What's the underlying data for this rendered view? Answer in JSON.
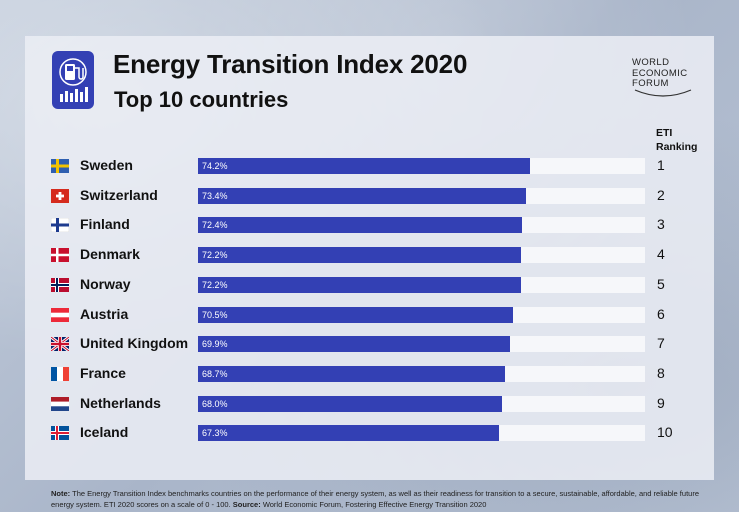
{
  "header": {
    "title": "Energy Transition Index 2020",
    "subtitle": "Top 10 countries"
  },
  "brand": {
    "line1": "WORLD",
    "line2": "ECONOMIC",
    "line3": "FORUM"
  },
  "ranking_header": {
    "line1": "ETI",
    "line2": "Ranking"
  },
  "colors": {
    "bar": "#3340b4",
    "track": "#f6f7fa"
  },
  "chart_data": {
    "type": "bar",
    "orientation": "horizontal",
    "title": "Energy Transition Index 2020",
    "subtitle": "Top 10 countries",
    "xlim": [
      0,
      100
    ],
    "categories": [
      "Sweden",
      "Switzerland",
      "Finland",
      "Denmark",
      "Norway",
      "Austria",
      "United Kingdom",
      "France",
      "Netherlands",
      "Iceland"
    ],
    "values": [
      74.2,
      73.4,
      72.4,
      72.2,
      72.2,
      70.5,
      69.9,
      68.7,
      68.0,
      67.3
    ],
    "value_labels": [
      "74.2%",
      "73.4%",
      "72.4%",
      "72.2%",
      "72.2%",
      "70.5%",
      "69.9%",
      "68.7%",
      "68.0%",
      "67.3%"
    ],
    "ranks": [
      "1",
      "2",
      "3",
      "4",
      "5",
      "6",
      "7",
      "8",
      "9",
      "10"
    ],
    "flags": [
      "sweden-flag",
      "switzerland-flag",
      "finland-flag",
      "denmark-flag",
      "norway-flag",
      "austria-flag",
      "united-kingdom-flag",
      "france-flag",
      "netherlands-flag",
      "iceland-flag"
    ]
  },
  "footnote": {
    "note_label": "Note:",
    "note_text": "The Energy Transition Index benchmarks countries on the performance of their energy system, as well as their readiness for transition to a secure, sustainable, affordable, and reliable future energy system. ETI 2020 scores on a scale of 0 - 100.",
    "source_label": "Source:",
    "source_text": "World Economic Forum, Fostering Effective Energy Transition 2020"
  }
}
